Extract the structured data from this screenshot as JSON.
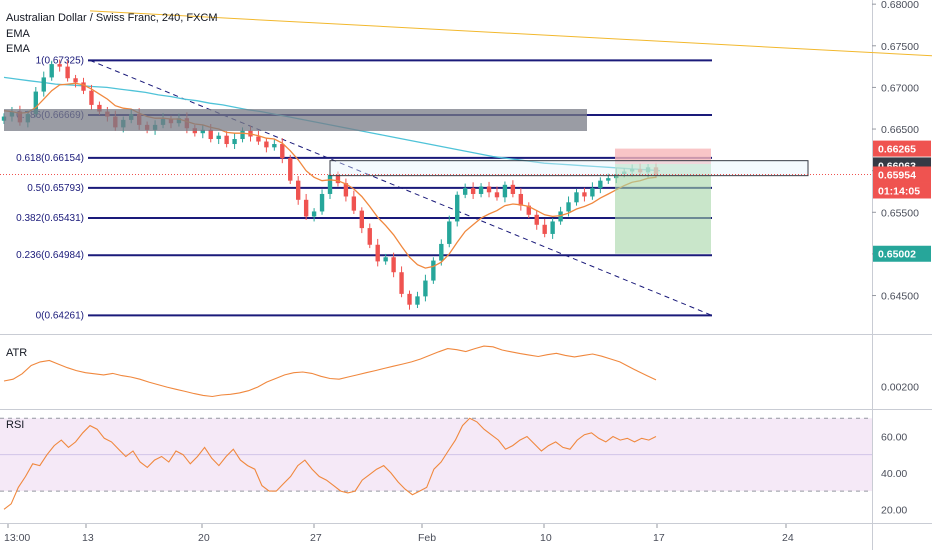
{
  "chart_data": {
    "type": "candlestick",
    "title": "Australian Dollar / Swiss Franc, 240, FXCM",
    "indicators": [
      "EMA",
      "EMA"
    ],
    "price_axis": {
      "ticks": [
        "0.68000",
        "0.67500",
        "0.67000",
        "0.66500",
        "0.66000",
        "0.65500",
        "0.65000",
        "0.64500"
      ],
      "tick_values": [
        0.68,
        0.675,
        0.67,
        0.665,
        0.66,
        0.655,
        0.65,
        0.645
      ],
      "range": [
        0.6405,
        0.6805
      ]
    },
    "time_axis": {
      "labels": [
        "13:00",
        "13",
        "20",
        "27",
        "Feb",
        "10",
        "17",
        "24"
      ]
    },
    "price_labels": [
      {
        "text": "0.66265",
        "color": "#ef5350"
      },
      {
        "text": "0.66063",
        "color": "#363a45"
      },
      {
        "text": "0.65954",
        "color": "#ef5350"
      },
      {
        "text": "01:14:05",
        "color": "#ef5350"
      },
      {
        "text": "0.65002",
        "color": "#26a69a"
      }
    ],
    "fibonacci": [
      {
        "label": "1(0.67325)",
        "value": 0.67325
      },
      {
        "label": "0.786(0.66669)",
        "value": 0.66669
      },
      {
        "label": "0.618(0.66154)",
        "value": 0.66154
      },
      {
        "label": "0.5(0.65793)",
        "value": 0.65793
      },
      {
        "label": "0.382(0.65431)",
        "value": 0.65431
      },
      {
        "label": "0.236(0.64984)",
        "value": 0.64984
      },
      {
        "label": "0(0.64261)",
        "value": 0.64261
      }
    ],
    "close_series": [
      0.6665,
      0.6671,
      0.6658,
      0.6668,
      0.6695,
      0.6712,
      0.6728,
      0.6725,
      0.6711,
      0.6706,
      0.6696,
      0.6679,
      0.6671,
      0.6665,
      0.6652,
      0.6661,
      0.6668,
      0.6655,
      0.6649,
      0.6655,
      0.6662,
      0.6657,
      0.6663,
      0.6651,
      0.6645,
      0.6649,
      0.6638,
      0.6642,
      0.6632,
      0.6638,
      0.6648,
      0.6641,
      0.6635,
      0.6628,
      0.6632,
      0.6615,
      0.6588,
      0.6565,
      0.6545,
      0.6551,
      0.6572,
      0.6595,
      0.6585,
      0.6569,
      0.6552,
      0.6531,
      0.6511,
      0.6491,
      0.6496,
      0.6478,
      0.6452,
      0.6439,
      0.6449,
      0.6468,
      0.6492,
      0.6512,
      0.6539,
      0.6571,
      0.6579,
      0.6572,
      0.6581,
      0.6574,
      0.6568,
      0.6583,
      0.6572,
      0.6558,
      0.6547,
      0.6535,
      0.6524,
      0.6539,
      0.6551,
      0.6562,
      0.6574,
      0.6569,
      0.6579,
      0.6588,
      0.6591,
      0.6596,
      0.6599,
      0.6602,
      0.6598,
      0.6604,
      0.6595
    ],
    "ema_fast_series": [
      0.6672,
      0.6671,
      0.6669,
      0.667,
      0.6676,
      0.6686,
      0.6696,
      0.6703,
      0.6704,
      0.6705,
      0.6703,
      0.6698,
      0.6692,
      0.6686,
      0.6678,
      0.6675,
      0.6674,
      0.6669,
      0.6665,
      0.6663,
      0.6663,
      0.6662,
      0.6662,
      0.6659,
      0.6656,
      0.6655,
      0.6652,
      0.665,
      0.6646,
      0.6645,
      0.6645,
      0.6644,
      0.6642,
      0.6639,
      0.6638,
      0.6633,
      0.6624,
      0.6613,
      0.66,
      0.6592,
      0.6588,
      0.6589,
      0.6588,
      0.6584,
      0.6578,
      0.6569,
      0.6557,
      0.6544,
      0.6534,
      0.6523,
      0.6509,
      0.6496,
      0.6487,
      0.6483,
      0.6485,
      0.649,
      0.65,
      0.6514,
      0.6527,
      0.6535,
      0.6543,
      0.6548,
      0.6552,
      0.6558,
      0.656,
      0.6559,
      0.6557,
      0.6552,
      0.6547,
      0.6545,
      0.6546,
      0.6549,
      0.6554,
      0.6557,
      0.6561,
      0.6567,
      0.6572,
      0.6577,
      0.6582,
      0.6586,
      0.6588,
      0.6591,
      0.6592
    ],
    "ema_slow_series": [
      0.6712,
      0.671,
      0.6708,
      0.6706,
      0.6704,
      0.6703,
      0.6702,
      0.6701,
      0.67,
      0.6698,
      0.6696,
      0.6694,
      0.6691,
      0.6689,
      0.6686,
      0.6684,
      0.6681,
      0.6679,
      0.6676,
      0.6673,
      0.6671,
      0.6668,
      0.6665,
      0.6662,
      0.6659,
      0.6656,
      0.6653,
      0.665,
      0.6647,
      0.6644,
      0.6641,
      0.6638,
      0.6635,
      0.6632,
      0.6629,
      0.6626,
      0.6623,
      0.662,
      0.6617,
      0.6615,
      0.6613,
      0.6611,
      0.6609,
      0.6608,
      0.6607,
      0.6606,
      0.6605,
      0.6604,
      0.6603,
      0.6602,
      0.6601,
      0.66
    ],
    "atr": {
      "label": "ATR",
      "ticks": [
        "0.00200"
      ],
      "tick_values": [
        0.002
      ],
      "range": [
        0.0014,
        0.0034
      ],
      "values": [
        0.00215,
        0.0022,
        0.00235,
        0.00258,
        0.00268,
        0.00272,
        0.00262,
        0.00252,
        0.00244,
        0.00238,
        0.00235,
        0.00232,
        0.00236,
        0.0023,
        0.00226,
        0.0022,
        0.00212,
        0.00205,
        0.00198,
        0.00192,
        0.00186,
        0.0018,
        0.00175,
        0.00172,
        0.00176,
        0.00178,
        0.00182,
        0.00188,
        0.00198,
        0.00212,
        0.00222,
        0.00232,
        0.00238,
        0.0024,
        0.00236,
        0.00228,
        0.00222,
        0.0022,
        0.00226,
        0.00232,
        0.00238,
        0.00244,
        0.0025,
        0.00256,
        0.00262,
        0.00268,
        0.00276,
        0.00286,
        0.00296,
        0.00305,
        0.00302,
        0.00297,
        0.00305,
        0.00312,
        0.0031,
        0.00301,
        0.00296,
        0.00291,
        0.00287,
        0.00283,
        0.00288,
        0.00292,
        0.00286,
        0.00282,
        0.00286,
        0.0029,
        0.00284,
        0.00276,
        0.00268,
        0.00255,
        0.00242,
        0.0023,
        0.00218
      ]
    },
    "rsi": {
      "label": "RSI",
      "ticks": [
        "60.00",
        "40.00",
        "20.00"
      ],
      "tick_values": [
        60,
        40,
        20
      ],
      "range": [
        13,
        74
      ],
      "band": [
        30,
        70
      ],
      "values": [
        20,
        23,
        32,
        38,
        45,
        44,
        50,
        55,
        58,
        54,
        57,
        62,
        66,
        64,
        59,
        57,
        53,
        49,
        52,
        46,
        43,
        47,
        49,
        46,
        52,
        50,
        45,
        49,
        54,
        48,
        44,
        49,
        53,
        47,
        44,
        42,
        33,
        30,
        30,
        34,
        38,
        44,
        47,
        42,
        38,
        36,
        33,
        30,
        29,
        30,
        36,
        39,
        42,
        44,
        40,
        35,
        31,
        28,
        30,
        32,
        42,
        46,
        52,
        58,
        66,
        70,
        68,
        64,
        61,
        58,
        53,
        55,
        58,
        60,
        56,
        52,
        55,
        57,
        54,
        53,
        58,
        61,
        62,
        59,
        57,
        60,
        58,
        59,
        57,
        59,
        58,
        60
      ]
    }
  }
}
